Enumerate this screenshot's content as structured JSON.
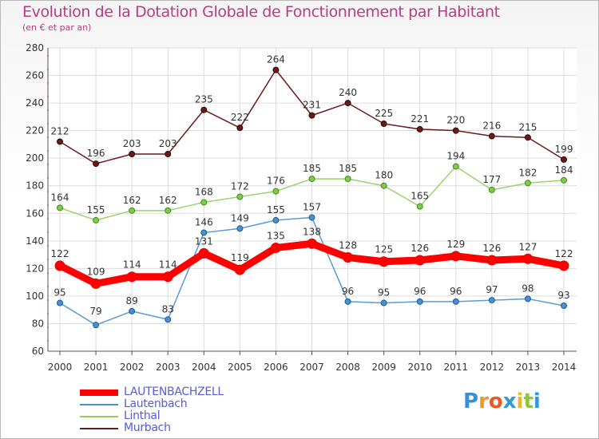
{
  "chart_data": {
    "type": "line",
    "title": "Evolution de la Dotation Globale de Fonctionnement par Habitant",
    "subtitle": "(en € et par an)",
    "x": [
      "2000",
      "2001",
      "2002",
      "2003",
      "2004",
      "2005",
      "2006",
      "2007",
      "2008",
      "2009",
      "2010",
      "2011",
      "2012",
      "2013",
      "2014"
    ],
    "ylim": [
      60,
      280
    ],
    "yticks": [
      60,
      80,
      100,
      120,
      140,
      160,
      180,
      200,
      220,
      240,
      260,
      280
    ],
    "grid": true,
    "legend_position": "bottom-left",
    "series": [
      {
        "name": "LAUTENBACHZELL",
        "color": "#ff0000",
        "values": [
          122,
          109,
          114,
          114,
          131,
          119,
          135,
          138,
          128,
          125,
          126,
          129,
          126,
          127,
          122
        ]
      },
      {
        "name": "Lautenbach",
        "color": "#4a8fcf",
        "values": [
          95,
          79,
          89,
          83,
          146,
          149,
          155,
          157,
          96,
          95,
          96,
          96,
          97,
          98,
          93
        ]
      },
      {
        "name": "Linthal",
        "color": "#90d060",
        "values": [
          164,
          155,
          162,
          162,
          168,
          172,
          176,
          185,
          185,
          180,
          165,
          194,
          177,
          182,
          184
        ]
      },
      {
        "name": "Murbach",
        "color": "#6b1a1a",
        "values": [
          212,
          196,
          203,
          203,
          235,
          222,
          264,
          231,
          240,
          225,
          221,
          220,
          216,
          215,
          199
        ]
      }
    ]
  },
  "logo": {
    "letters": [
      "P",
      "r",
      "o",
      "x",
      "i",
      "t",
      "i"
    ]
  }
}
